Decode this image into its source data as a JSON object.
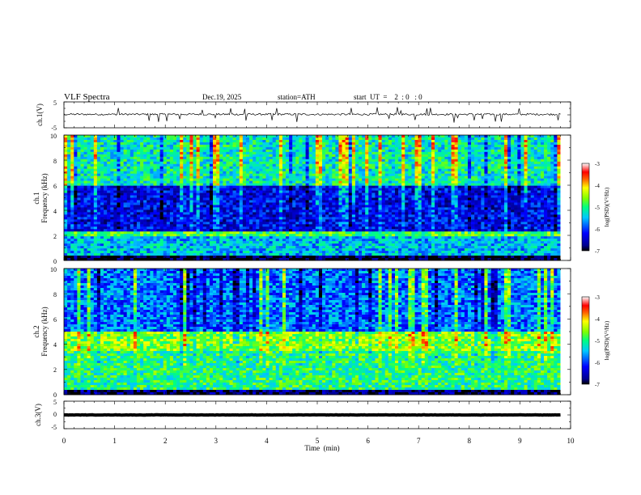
{
  "header": {
    "title": "VLF  Spectra",
    "date": "Dec.19, 2025",
    "station": "station=ATH",
    "start": "start  UT  =    2  : 0   : 0"
  },
  "chart_data": [
    {
      "type": "line",
      "name": "ch1-waveform",
      "ylabel": "ch.1(V)",
      "ylim": [
        -5,
        5
      ],
      "yticks": [
        "5",
        "-5"
      ],
      "baseline": 0.2,
      "noise_amplitude": 0.35,
      "spike_count": 30
    },
    {
      "type": "heatmap",
      "name": "ch1-spectrogram",
      "ylabel": "ch.1\nFrequency  (kHz)",
      "ylabel_lines": [
        "ch.1",
        "Frequency  (kHz)"
      ],
      "ylim": [
        0,
        10
      ],
      "yticks": [
        "0",
        "2",
        "4",
        "6",
        "8",
        "10"
      ],
      "colorbar": {
        "label": "log(PSD)(V²/Hz)",
        "range": [
          -7,
          -3
        ],
        "ticks": [
          "-3",
          "-4",
          "-5",
          "-6",
          "-7"
        ]
      },
      "bands_khz": [
        {
          "from": 0.0,
          "to": 0.4,
          "value": -7.0
        },
        {
          "from": 0.4,
          "to": 2.0,
          "value": -5.5
        },
        {
          "from": 2.0,
          "to": 2.3,
          "value": -4.8
        },
        {
          "from": 2.3,
          "to": 6.0,
          "value": -6.3
        },
        {
          "from": 6.0,
          "to": 10.0,
          "value": -5.2
        }
      ]
    },
    {
      "type": "heatmap",
      "name": "ch2-spectrogram",
      "ylabel": "ch.2\nFrequency  (kHz)",
      "ylabel_lines": [
        "ch.2",
        "Frequency  (kHz)"
      ],
      "ylim": [
        0,
        10
      ],
      "yticks": [
        "0",
        "2",
        "4",
        "6",
        "8",
        "10"
      ],
      "colorbar": {
        "label": "log(PSD)(V²/Hz)",
        "range": [
          -7,
          -3
        ],
        "ticks": [
          "-3",
          "-4",
          "-5",
          "-6",
          "-7"
        ]
      },
      "bands_khz": [
        {
          "from": 0.0,
          "to": 0.3,
          "value": -6.8
        },
        {
          "from": 0.3,
          "to": 3.5,
          "value": -5.0
        },
        {
          "from": 3.5,
          "to": 5.0,
          "value": -4.6
        },
        {
          "from": 5.0,
          "to": 10.0,
          "value": -5.8
        }
      ]
    },
    {
      "type": "line",
      "name": "ch3-waveform",
      "ylabel": "ch.3(V)",
      "ylim": [
        -5,
        5
      ],
      "yticks": [
        "5",
        "0",
        "-5"
      ],
      "baseline": 0.0,
      "noise_amplitude": 0.05,
      "spike_count": 0
    }
  ],
  "xaxis": {
    "xlabel": "Time  (min)",
    "xlim": [
      0,
      10
    ],
    "ticks": [
      "0",
      "1",
      "2",
      "3",
      "4",
      "5",
      "6",
      "7",
      "8",
      "9",
      "10"
    ],
    "data_end_min": 9.8
  }
}
